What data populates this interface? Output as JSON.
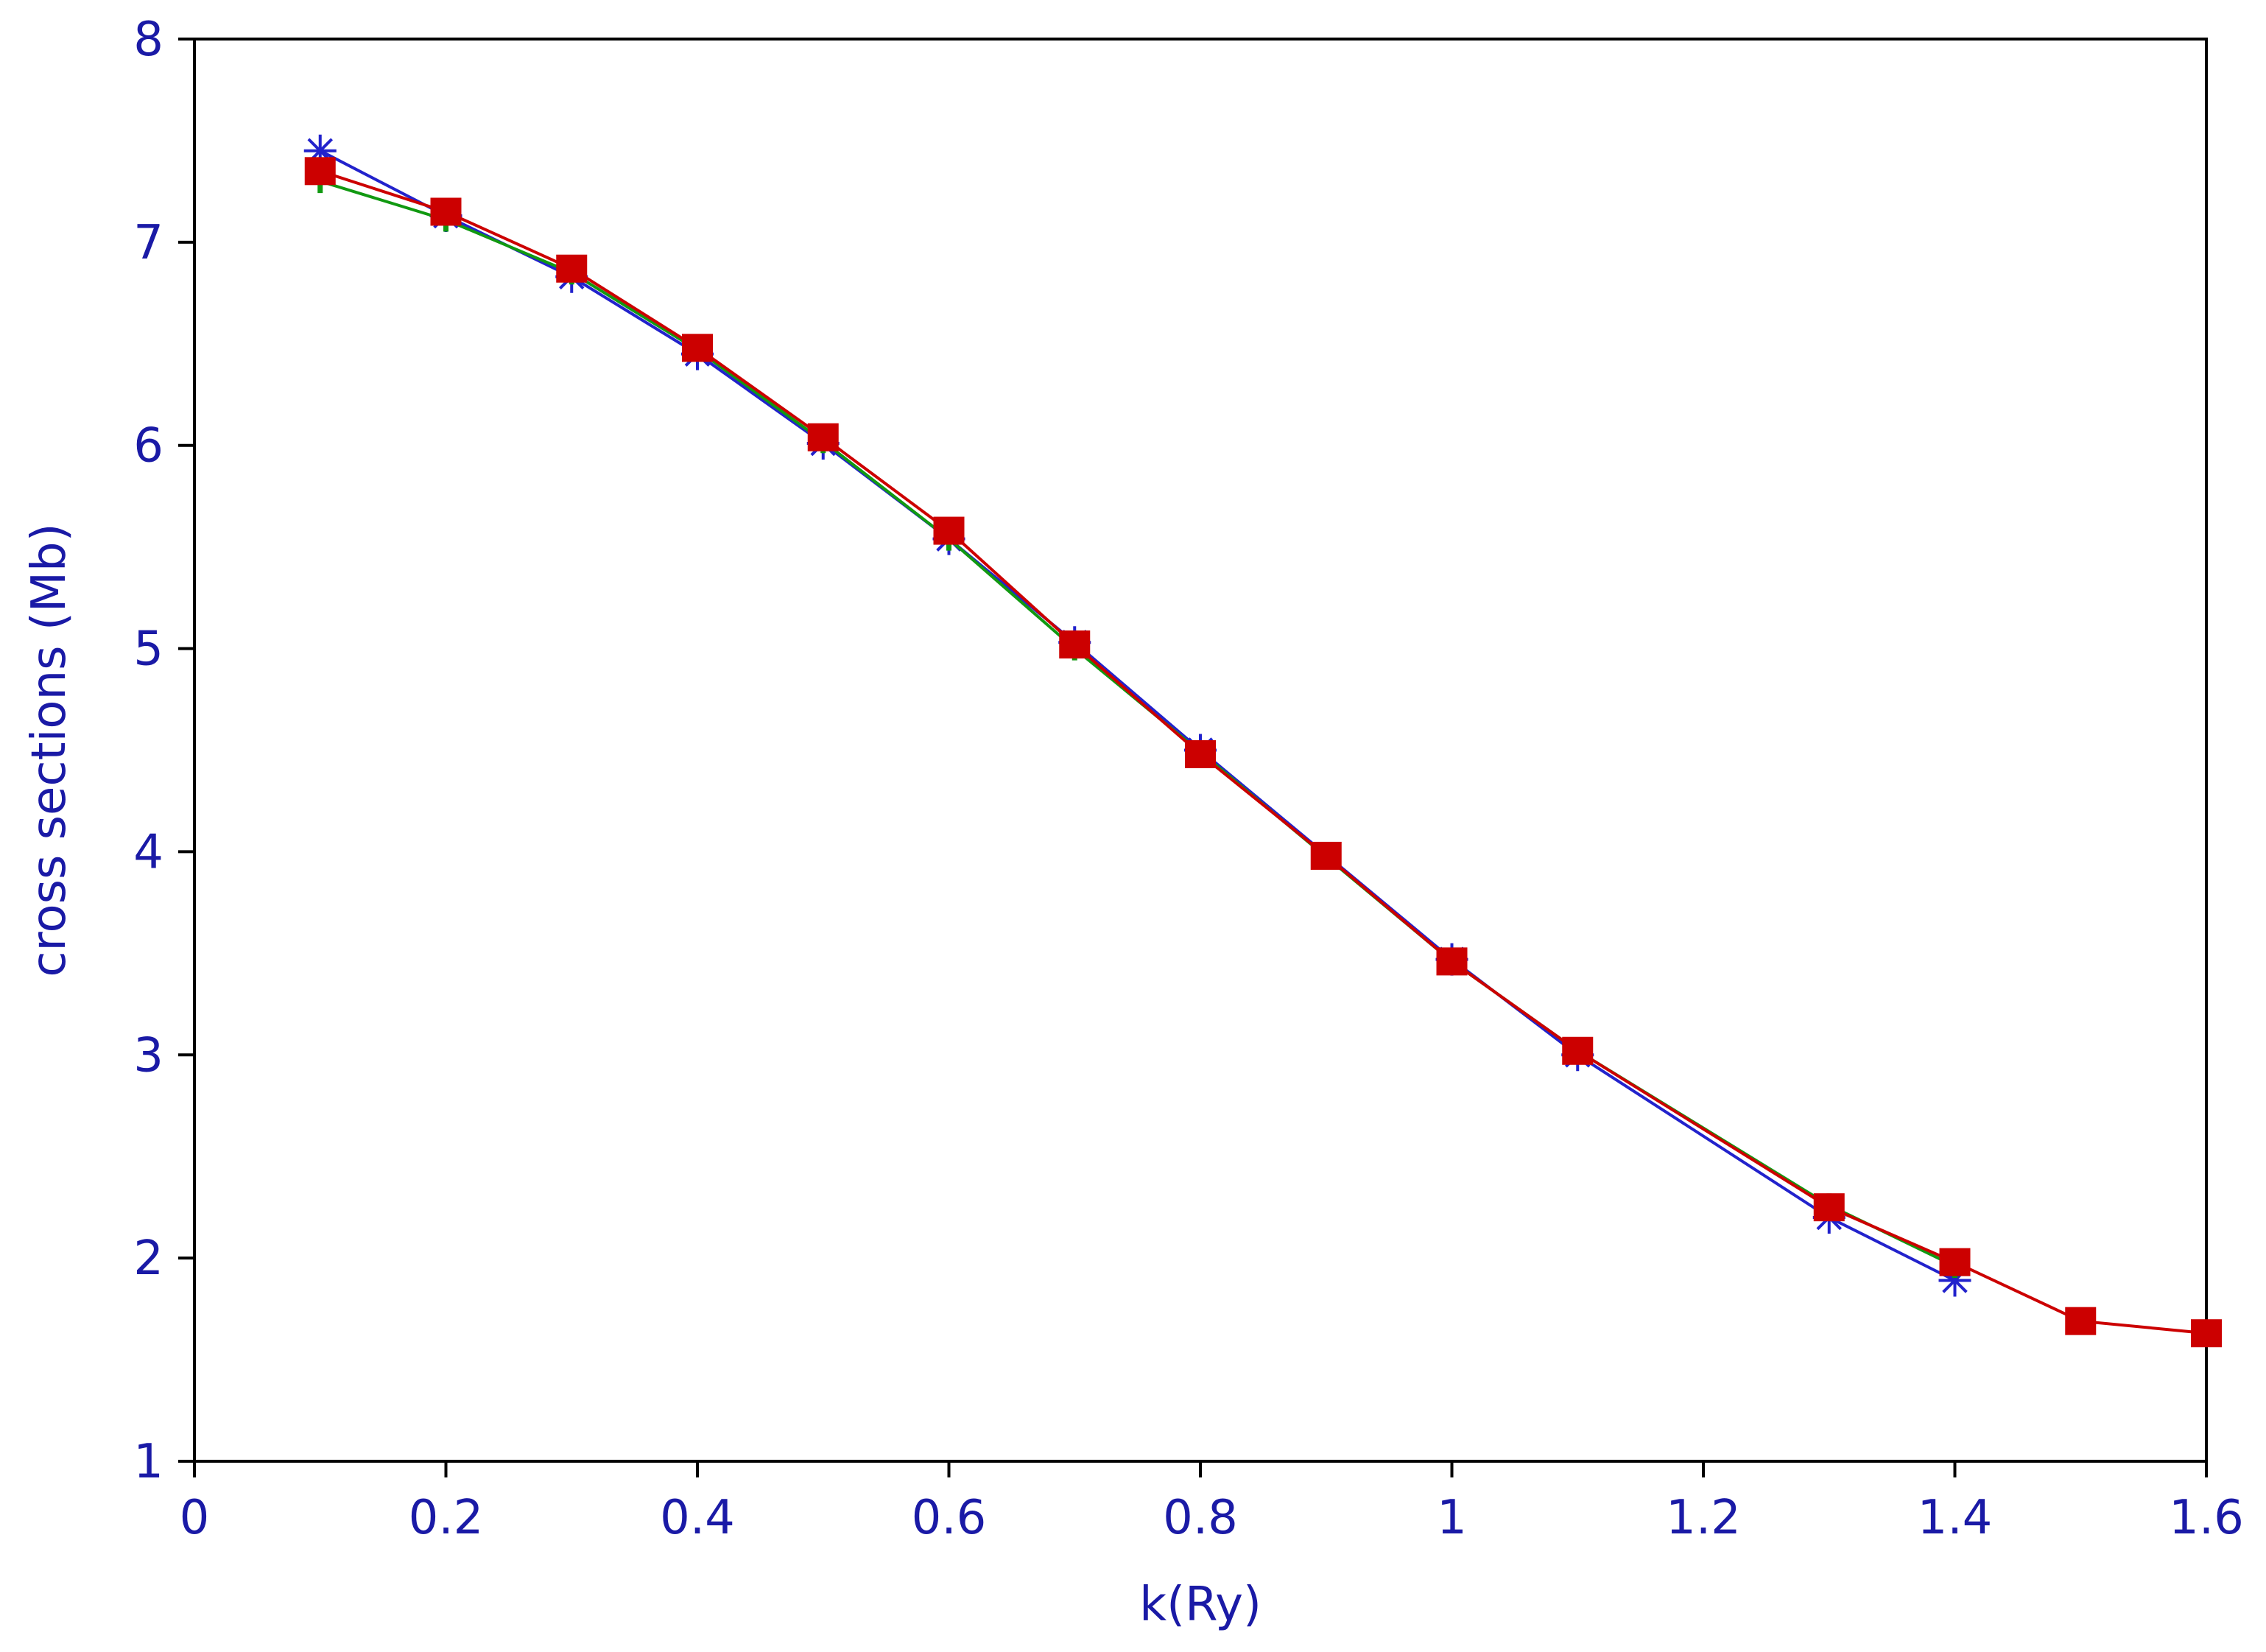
{
  "chart_data": {
    "type": "line",
    "title": "",
    "xlabel": "k(Ry)",
    "ylabel": "cross sections (Mb)",
    "xlim": [
      0,
      1.6
    ],
    "ylim": [
      1,
      8
    ],
    "xticks": [
      "0",
      "0.2",
      "0.4",
      "0.6",
      "0.8",
      "1",
      "1.2",
      "1.4",
      "1.6"
    ],
    "yticks": [
      "1",
      "2",
      "3",
      "4",
      "5",
      "6",
      "7",
      "8"
    ],
    "grid": false,
    "legend": "none",
    "series": [
      {
        "color": "#2222cc",
        "marker": "asterisk",
        "points": [
          [
            0.1,
            7.45
          ],
          [
            0.2,
            7.13
          ],
          [
            0.3,
            6.83
          ],
          [
            0.4,
            6.45
          ],
          [
            0.5,
            6.01
          ],
          [
            0.6,
            5.54
          ],
          [
            0.7,
            5.03
          ],
          [
            0.8,
            4.5
          ],
          [
            1.0,
            3.47
          ],
          [
            1.1,
            3.0
          ],
          [
            1.3,
            2.2
          ],
          [
            1.4,
            1.89
          ]
        ]
      },
      {
        "color": "#119911",
        "marker": "plus",
        "points": [
          [
            0.1,
            7.3
          ],
          [
            0.2,
            7.11
          ],
          [
            0.3,
            6.85
          ],
          [
            0.4,
            6.47
          ],
          [
            0.5,
            6.02
          ],
          [
            0.6,
            5.54
          ],
          [
            0.7,
            5.0
          ],
          [
            0.8,
            4.49
          ],
          [
            1.0,
            3.46
          ],
          [
            1.1,
            3.02
          ],
          [
            1.3,
            2.26
          ],
          [
            1.4,
            1.96
          ]
        ]
      },
      {
        "color": "#cc0000",
        "marker": "square",
        "points": [
          [
            0.1,
            7.35
          ],
          [
            0.2,
            7.15
          ],
          [
            0.3,
            6.87
          ],
          [
            0.4,
            6.48
          ],
          [
            0.5,
            6.04
          ],
          [
            0.6,
            5.58
          ],
          [
            0.7,
            5.02
          ],
          [
            0.8,
            4.48
          ],
          [
            0.9,
            3.98
          ],
          [
            1.0,
            3.46
          ],
          [
            1.1,
            3.02
          ],
          [
            1.3,
            2.25
          ],
          [
            1.4,
            1.98
          ],
          [
            1.5,
            1.69
          ],
          [
            1.6,
            1.63
          ]
        ]
      }
    ]
  }
}
